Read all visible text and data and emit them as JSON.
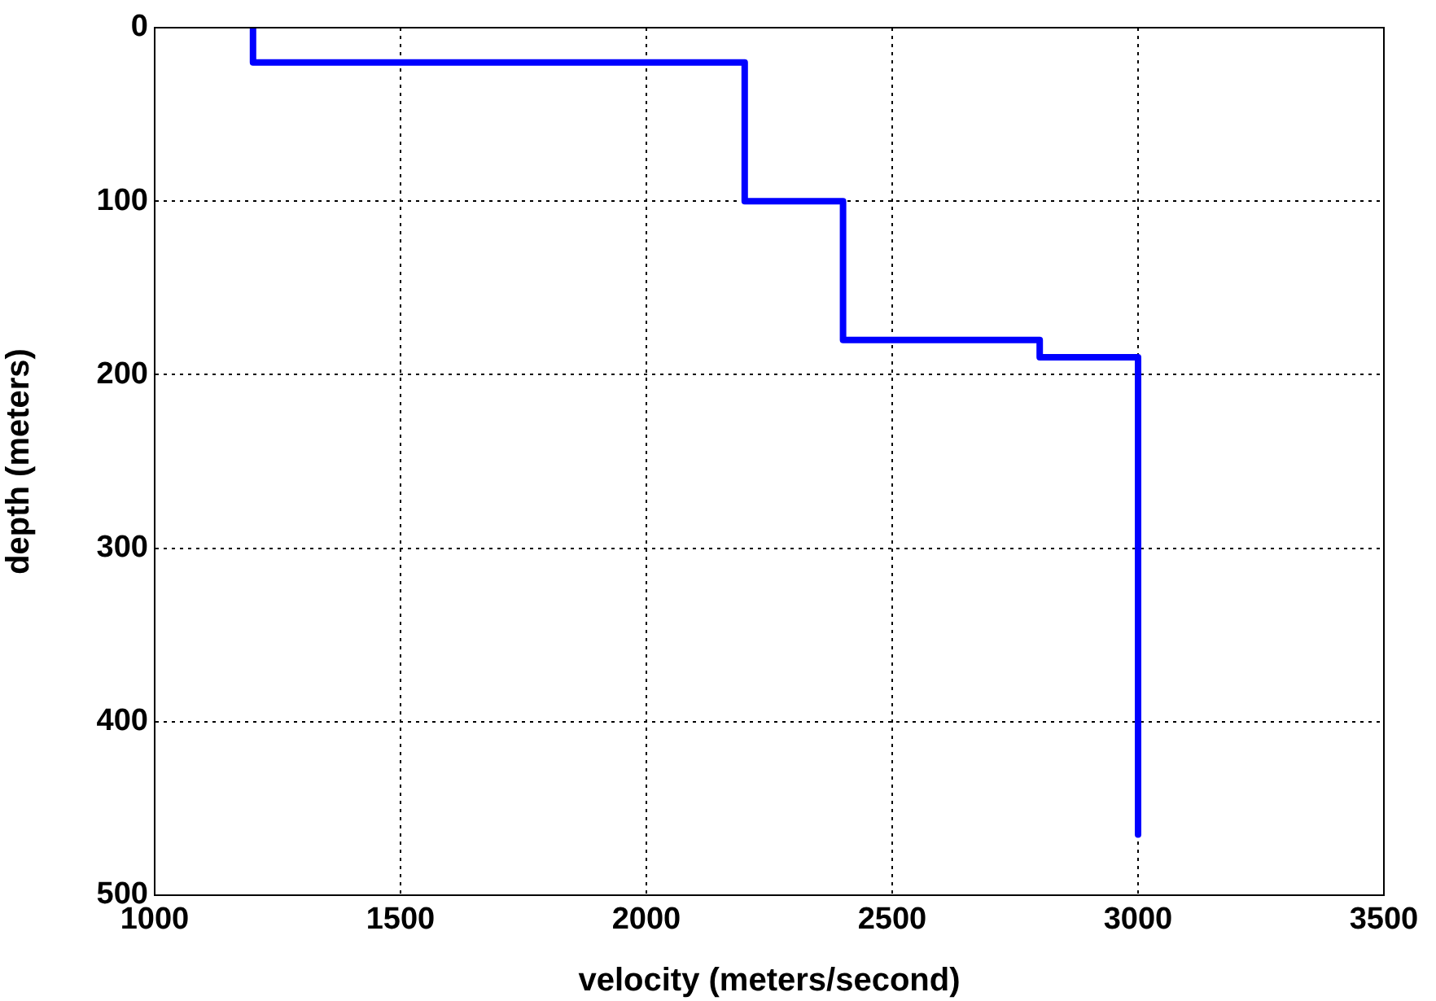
{
  "chart_data": {
    "type": "line",
    "xlabel": "velocity (meters/second)",
    "ylabel": "depth (meters)",
    "x": [
      1200,
      1200,
      2200,
      2200,
      2400,
      2400,
      2800,
      2800,
      3000,
      3000
    ],
    "values": [
      0,
      20,
      20,
      100,
      100,
      180,
      180,
      190,
      190,
      465
    ],
    "color": "#0000ff",
    "xlim": [
      1000,
      3500
    ],
    "xticks": [
      1000,
      1500,
      2000,
      2500,
      3000,
      3500
    ],
    "ylim": [
      500,
      0
    ],
    "yticks": [
      0,
      100,
      200,
      300,
      400,
      500
    ],
    "grid": true,
    "marker": "none",
    "line_style": "solid",
    "legend": false
  }
}
